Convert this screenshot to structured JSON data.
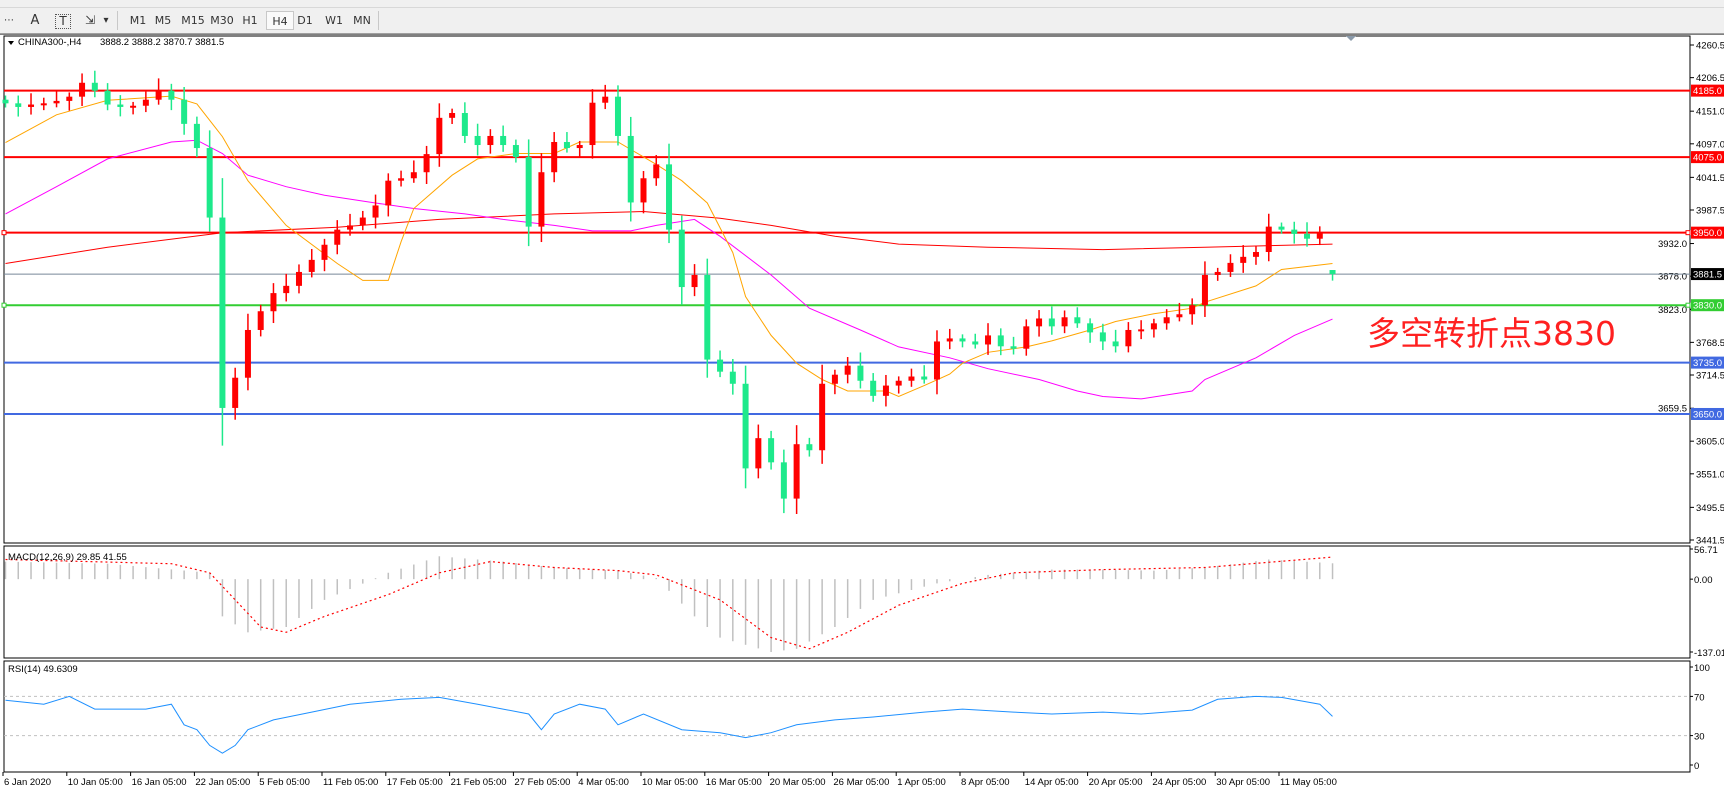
{
  "toolbar": {
    "tools": [
      {
        "name": "grid-icon",
        "glyph": "⋯"
      },
      {
        "name": "text-icon",
        "glyph": "A"
      },
      {
        "name": "text-label-icon",
        "glyph": "T"
      },
      {
        "name": "arrows-icon",
        "glyph": "⇲"
      }
    ],
    "dropdown_glyph": "▾",
    "timeframes": [
      "M1",
      "M5",
      "M15",
      "M30",
      "H1",
      "H4",
      "D1",
      "W1",
      "MN"
    ],
    "active_timeframe": "H4"
  },
  "header": {
    "symbol": "CHINA300-,H4",
    "ohlc": "3888.2 3888.2 3870.7 3881.5"
  },
  "price_axis": {
    "ticks": [
      "4260.5",
      "4206.5",
      "4151.0",
      "4097.0",
      "4041.5",
      "3987.5",
      "3932.0",
      "3878.0",
      "3823.0",
      "3768.5",
      "3714.5",
      "3659.5",
      "3605.0",
      "3551.0",
      "3495.5",
      "3441.5"
    ],
    "range": [
      3441.5,
      4260.5
    ]
  },
  "levels": [
    {
      "price": 4185.0,
      "label": "4185.0",
      "color": "#ff0000"
    },
    {
      "price": 4075.0,
      "label": "4075.0",
      "color": "#ff0000"
    },
    {
      "price": 3950.0,
      "label": "3950.0",
      "color": "#ff0000"
    },
    {
      "price": 3830.0,
      "label": "3830.0",
      "color": "#32cd32"
    },
    {
      "price": 3735.0,
      "label": "3735.0",
      "color": "#4169e1"
    },
    {
      "price": 3650.0,
      "label": "3650.0",
      "color": "#4169e1"
    }
  ],
  "bid": {
    "price": 3881.5,
    "label": "3881.5",
    "color": "#778899"
  },
  "annotation": {
    "text": "多空转折点3830",
    "color": "#ff2020"
  },
  "colors": {
    "up": "#ff0000",
    "down": "#1de98b",
    "ma_fast": "#ffa500",
    "ma_mid": "#ff00ff",
    "ma_slow": "#ff0000",
    "macd_hist": "#c0c0c0",
    "macd_signal": "#ff0000",
    "rsi": "#1e90ff"
  },
  "candles": {
    "closes": [
      4164,
      4158,
      4162,
      4164,
      4168,
      4175,
      4198,
      4185,
      4162,
      4158,
      4160,
      4170,
      4185,
      4170,
      4130,
      4090,
      3975,
      3660,
      3710,
      3789,
      3820,
      3850,
      3862,
      3885,
      3905,
      3930,
      3955,
      3962,
      3975,
      3995,
      4036,
      4040,
      4050,
      4080,
      4140,
      4148,
      4110,
      4095,
      4110,
      4095,
      4075,
      3960,
      4050,
      4100,
      4090,
      4095,
      4165,
      4175,
      4110,
      4000,
      4040,
      4063,
      3955,
      3860,
      3880,
      3740,
      3720,
      3700,
      3560,
      3610,
      3570,
      3510,
      3600,
      3590,
      3700,
      3715,
      3730,
      3705,
      3680,
      3697,
      3705,
      3712,
      3707,
      3770,
      3775,
      3770,
      3765,
      3780,
      3762,
      3758,
      3795,
      3808,
      3795,
      3810,
      3800,
      3785,
      3770,
      3762,
      3789,
      3790,
      3800,
      3810,
      3815,
      3830,
      3880,
      3885,
      3900,
      3910,
      3918,
      3960,
      3955,
      3948,
      3940,
      3950,
      3881.5
    ],
    "last": {
      "open": 3888.2,
      "high": 3888.2,
      "low": 3870.7,
      "close": 3881.5
    }
  },
  "moving_averages": {
    "fast": [
      [
        0,
        4099
      ],
      [
        4,
        4145
      ],
      [
        8,
        4169
      ],
      [
        13,
        4176
      ],
      [
        15,
        4163
      ],
      [
        17,
        4109
      ],
      [
        19,
        4036
      ],
      [
        22,
        3962
      ],
      [
        26,
        3899
      ],
      [
        28,
        3871
      ],
      [
        30,
        3871
      ],
      [
        31,
        3935
      ],
      [
        32,
        3990
      ],
      [
        35,
        4045
      ],
      [
        37,
        4072
      ],
      [
        40,
        4081
      ],
      [
        43,
        4081
      ],
      [
        45,
        4100
      ],
      [
        48,
        4100
      ],
      [
        51,
        4063
      ],
      [
        53,
        4036
      ],
      [
        55,
        3999
      ],
      [
        57,
        3917
      ],
      [
        58,
        3844
      ],
      [
        60,
        3780
      ],
      [
        62,
        3734
      ],
      [
        64,
        3707
      ],
      [
        66,
        3688
      ],
      [
        69,
        3688
      ],
      [
        70,
        3679
      ],
      [
        72,
        3697
      ],
      [
        74,
        3716
      ],
      [
        75,
        3734
      ],
      [
        77,
        3752
      ],
      [
        80,
        3761
      ],
      [
        82,
        3771
      ],
      [
        85,
        3789
      ],
      [
        87,
        3803
      ],
      [
        90,
        3816
      ],
      [
        93,
        3825
      ],
      [
        94,
        3835
      ],
      [
        98,
        3862
      ],
      [
        100,
        3889
      ],
      [
        104,
        3899
      ]
    ],
    "mid": [
      [
        0,
        3981
      ],
      [
        4,
        4026
      ],
      [
        8,
        4072
      ],
      [
        13,
        4100
      ],
      [
        15,
        4103
      ],
      [
        17,
        4081
      ],
      [
        19,
        4045
      ],
      [
        22,
        4026
      ],
      [
        25,
        4012
      ],
      [
        29,
        3999
      ],
      [
        32,
        3990
      ],
      [
        36,
        3981
      ],
      [
        39,
        3972
      ],
      [
        43,
        3962
      ],
      [
        46,
        3953
      ],
      [
        49,
        3953
      ],
      [
        51,
        3962
      ],
      [
        54,
        3972
      ],
      [
        56,
        3944
      ],
      [
        60,
        3880
      ],
      [
        63,
        3825
      ],
      [
        67,
        3789
      ],
      [
        70,
        3761
      ],
      [
        74,
        3743
      ],
      [
        77,
        3725
      ],
      [
        81,
        3707
      ],
      [
        84,
        3688
      ],
      [
        86,
        3679
      ],
      [
        89,
        3675
      ],
      [
        93,
        3688
      ],
      [
        94,
        3707
      ],
      [
        98,
        3743
      ],
      [
        101,
        3780
      ],
      [
        104,
        3807
      ]
    ],
    "slow": [
      [
        0,
        3899
      ],
      [
        8,
        3926
      ],
      [
        17,
        3950
      ],
      [
        26,
        3959
      ],
      [
        34,
        3972
      ],
      [
        43,
        3981
      ],
      [
        50,
        3985
      ],
      [
        56,
        3974
      ],
      [
        60,
        3962
      ],
      [
        65,
        3944
      ],
      [
        70,
        3931
      ],
      [
        77,
        3926
      ],
      [
        86,
        3922
      ],
      [
        94,
        3926
      ],
      [
        104,
        3931
      ]
    ]
  },
  "macd": {
    "label": "MACD(12,26,9) 29.85 41.55",
    "ticks": [
      "56.71",
      "0.00",
      "-137.01"
    ],
    "range": [
      -137.01,
      56.71
    ],
    "histogram": [
      [
        0,
        33
      ],
      [
        8,
        29
      ],
      [
        16,
        12
      ],
      [
        17,
        -70
      ],
      [
        19,
        -100
      ],
      [
        22,
        -90
      ],
      [
        25,
        -39
      ],
      [
        30,
        12
      ],
      [
        34,
        43
      ],
      [
        39,
        33
      ],
      [
        43,
        22
      ],
      [
        48,
        16
      ],
      [
        51,
        2
      ],
      [
        54,
        -70
      ],
      [
        56,
        -110
      ],
      [
        60,
        -137
      ],
      [
        62,
        -131
      ],
      [
        65,
        -90
      ],
      [
        68,
        -39
      ],
      [
        73,
        -8
      ],
      [
        77,
        8
      ],
      [
        82,
        18
      ],
      [
        86,
        18
      ],
      [
        90,
        16
      ],
      [
        94,
        22
      ],
      [
        99,
        37
      ],
      [
        104,
        29.85
      ]
    ],
    "signal": [
      [
        0,
        37
      ],
      [
        13,
        29
      ],
      [
        16,
        12
      ],
      [
        18,
        -39
      ],
      [
        20,
        -90
      ],
      [
        22,
        -100
      ],
      [
        25,
        -70
      ],
      [
        30,
        -29
      ],
      [
        34,
        12
      ],
      [
        38,
        33
      ],
      [
        43,
        22
      ],
      [
        48,
        16
      ],
      [
        51,
        8
      ],
      [
        56,
        -39
      ],
      [
        60,
        -110
      ],
      [
        63,
        -131
      ],
      [
        66,
        -100
      ],
      [
        70,
        -49
      ],
      [
        75,
        -8
      ],
      [
        79,
        12
      ],
      [
        86,
        18
      ],
      [
        94,
        22
      ],
      [
        104,
        41.55
      ]
    ]
  },
  "rsi": {
    "label": "RSI(14) 49.6309",
    "ticks": [
      "100",
      "70",
      "30",
      "0"
    ],
    "levels": [
      70,
      30
    ],
    "values": [
      [
        0,
        66
      ],
      [
        3,
        62
      ],
      [
        5,
        70
      ],
      [
        7,
        57
      ],
      [
        11,
        57
      ],
      [
        13,
        62
      ],
      [
        14,
        41
      ],
      [
        15,
        36
      ],
      [
        16,
        20
      ],
      [
        17,
        12
      ],
      [
        18,
        20
      ],
      [
        19,
        36
      ],
      [
        21,
        46
      ],
      [
        24,
        54
      ],
      [
        27,
        62
      ],
      [
        31,
        67
      ],
      [
        34,
        69
      ],
      [
        37,
        62
      ],
      [
        39,
        57
      ],
      [
        41,
        52
      ],
      [
        42,
        36
      ],
      [
        43,
        52
      ],
      [
        45,
        62
      ],
      [
        47,
        57
      ],
      [
        48,
        41
      ],
      [
        50,
        52
      ],
      [
        53,
        36
      ],
      [
        56,
        33
      ],
      [
        58,
        28
      ],
      [
        60,
        33
      ],
      [
        62,
        41
      ],
      [
        65,
        46
      ],
      [
        68,
        49
      ],
      [
        72,
        54
      ],
      [
        75,
        57
      ],
      [
        79,
        54
      ],
      [
        82,
        52
      ],
      [
        86,
        54
      ],
      [
        89,
        52
      ],
      [
        93,
        56
      ],
      [
        95,
        67
      ],
      [
        98,
        70
      ],
      [
        100,
        69
      ],
      [
        103,
        62
      ],
      [
        104,
        49.63
      ]
    ]
  },
  "time_axis": [
    "6 Jan 2020",
    "10 Jan 05:00",
    "16 Jan 05:00",
    "22 Jan 05:00",
    "5 Feb 05:00",
    "11 Feb 05:00",
    "17 Feb 05:00",
    "21 Feb 05:00",
    "27 Feb 05:00",
    "4 Mar 05:00",
    "10 Mar 05:00",
    "16 Mar 05:00",
    "20 Mar 05:00",
    "26 Mar 05:00",
    "1 Apr 05:00",
    "8 Apr 05:00",
    "14 Apr 05:00",
    "20 Apr 05:00",
    "24 Apr 05:00",
    "30 Apr 05:00",
    "11 May 05:00"
  ]
}
